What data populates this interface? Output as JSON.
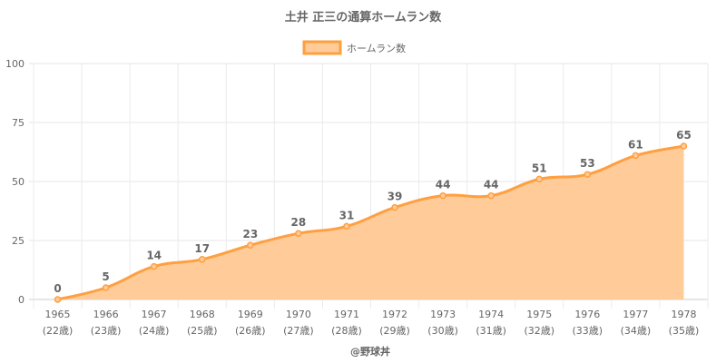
{
  "chart_data": {
    "type": "area",
    "title": "土井 正三の通算ホームラン数",
    "categories": [
      "1965",
      "1966",
      "1967",
      "1968",
      "1969",
      "1970",
      "1971",
      "1972",
      "1973",
      "1974",
      "1975",
      "1976",
      "1977",
      "1978"
    ],
    "sublabels": [
      "(22歳)",
      "(23歳)",
      "(24歳)",
      "(25歳)",
      "(26歳)",
      "(27歳)",
      "(28歳)",
      "(29歳)",
      "(30歳)",
      "(31歳)",
      "(32歳)",
      "(33歳)",
      "(34歳)",
      "(35歳)"
    ],
    "series": [
      {
        "name": "ホームラン数",
        "values": [
          0,
          5,
          14,
          17,
          23,
          28,
          31,
          39,
          44,
          44,
          51,
          53,
          61,
          65
        ]
      }
    ],
    "ylim": [
      0,
      100
    ],
    "yticks": [
      0,
      25,
      50,
      75,
      100
    ],
    "grid": true,
    "legend": "top",
    "colors": {
      "line": "#ff9f40",
      "fill": "#ffcc99"
    }
  },
  "credit": "@野球丼"
}
